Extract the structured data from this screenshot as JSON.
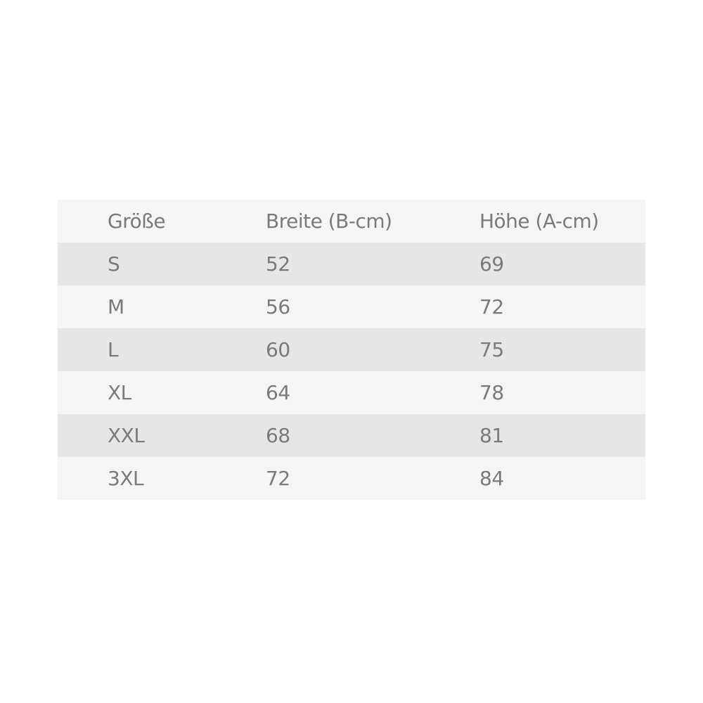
{
  "table": {
    "headers": [
      "Größe",
      "Breite (B-cm)",
      "Höhe (A-cm)"
    ],
    "rows": [
      [
        "S",
        "52",
        "69"
      ],
      [
        "M",
        "56",
        "72"
      ],
      [
        "L",
        "60",
        "75"
      ],
      [
        "XL",
        "64",
        "78"
      ],
      [
        "XXL",
        "68",
        "81"
      ],
      [
        "3XL",
        "72",
        "84"
      ]
    ]
  }
}
